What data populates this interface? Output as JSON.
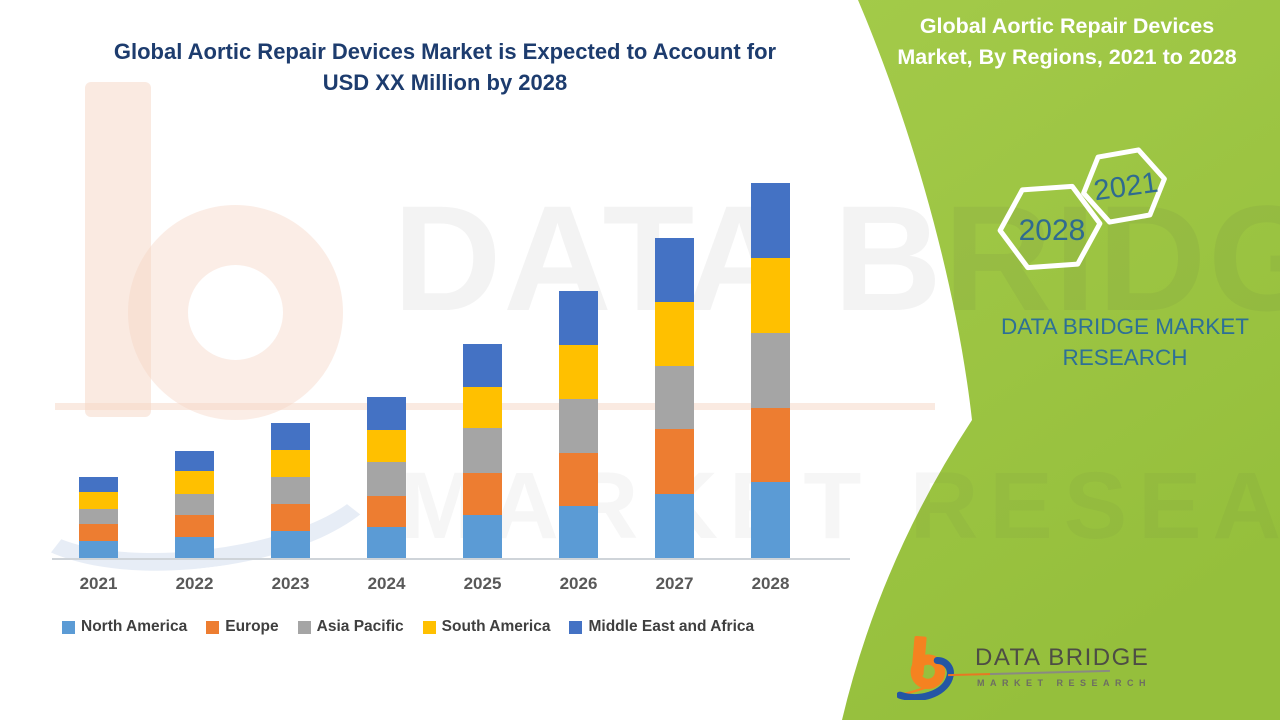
{
  "title": {
    "line1": "Global Aortic Repair Devices Market is Expected to Account for",
    "line2": "USD XX Million by 2028"
  },
  "right_panel": {
    "heading_line1": "Global Aortic Repair Devices",
    "heading_line2": "Market, By Regions, 2021 to 2028",
    "hexagon_back_label": "2028",
    "hexagon_front_label": "2021",
    "brand_line1": "DATA BRIDGE MARKET",
    "brand_line2": "RESEARCH",
    "accent_green": "#9CC441",
    "text_blue": "#2d7096"
  },
  "watermark": {
    "line1": "DATA BRIDGE",
    "line2": "MARKET RESEARCH"
  },
  "footer_logo": {
    "brand": "DATA BRIDGE",
    "subtitle": "MARKET RESEARCH"
  },
  "chart_data": {
    "type": "bar",
    "stacked": true,
    "title": "Global Aortic Repair Devices Market is Expected to Account for USD XX Million by 2028",
    "xlabel": "",
    "ylabel": "",
    "value_axis_labeled": false,
    "units": "relative (chart shows USD XX Million, values unlabeled)",
    "legend_position": "bottom",
    "grid": false,
    "categories": [
      "2021",
      "2022",
      "2023",
      "2024",
      "2025",
      "2026",
      "2027",
      "2028"
    ],
    "series": [
      {
        "name": "North America",
        "color": "#5B9BD5",
        "values": [
          17,
          21,
          27,
          31,
          43,
          52,
          64,
          76
        ]
      },
      {
        "name": "Europe",
        "color": "#ED7D31",
        "values": [
          17,
          22,
          27,
          31,
          42,
          53,
          65,
          74
        ]
      },
      {
        "name": "Asia Pacific",
        "color": "#A5A5A5",
        "values": [
          15,
          21,
          27,
          34,
          45,
          54,
          63,
          75
        ]
      },
      {
        "name": "South America",
        "color": "#FFC000",
        "values": [
          17,
          23,
          27,
          32,
          41,
          54,
          64,
          75
        ]
      },
      {
        "name": "Middle East and Africa",
        "color": "#4472C4",
        "values": [
          15,
          20,
          27,
          33,
          43,
          54,
          64,
          75
        ]
      }
    ],
    "totals": [
      81,
      107,
      135,
      161,
      214,
      267,
      320,
      375
    ]
  }
}
